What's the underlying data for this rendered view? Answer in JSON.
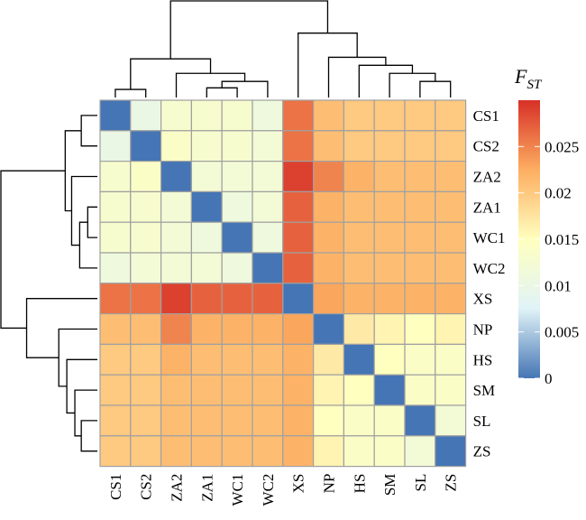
{
  "chart_data": {
    "type": "heatmap",
    "legend_title_main": "F",
    "legend_title_sub": "ST",
    "legend_ticks": [
      "0.025",
      "0.02",
      "0.015",
      "0.01",
      "0.005",
      "0"
    ],
    "legend_tick_values": [
      0.025,
      0.02,
      0.015,
      0.01,
      0.005,
      0
    ],
    "value_range": [
      0,
      0.03
    ],
    "colors": [
      "#4575b4",
      "#e0f3f8",
      "#ffffbf",
      "#fdae61",
      "#d73027"
    ],
    "row_labels": [
      "CS1",
      "CS2",
      "ZA2",
      "ZA1",
      "WC1",
      "WC2",
      "XS",
      "NP",
      "HS",
      "SM",
      "SL",
      "ZS"
    ],
    "col_labels": [
      "CS1",
      "CS2",
      "ZA2",
      "ZA1",
      "WC1",
      "WC2",
      "XS",
      "NP",
      "HS",
      "SM",
      "SL",
      "ZS"
    ],
    "values": [
      [
        0,
        0.01,
        0.013,
        0.013,
        0.013,
        0.011,
        0.026,
        0.021,
        0.02,
        0.02,
        0.02,
        0.02
      ],
      [
        0.01,
        0,
        0.014,
        0.013,
        0.013,
        0.012,
        0.026,
        0.021,
        0.02,
        0.02,
        0.02,
        0.02
      ],
      [
        0.013,
        0.014,
        0,
        0.012,
        0.012,
        0.012,
        0.029,
        0.025,
        0.022,
        0.021,
        0.021,
        0.021
      ],
      [
        0.013,
        0.013,
        0.012,
        0,
        0.011,
        0.012,
        0.027,
        0.022,
        0.021,
        0.021,
        0.021,
        0.021
      ],
      [
        0.013,
        0.013,
        0.012,
        0.011,
        0,
        0.011,
        0.027,
        0.022,
        0.021,
        0.021,
        0.021,
        0.021
      ],
      [
        0.011,
        0.012,
        0.012,
        0.012,
        0.011,
        0,
        0.027,
        0.022,
        0.021,
        0.021,
        0.021,
        0.021
      ],
      [
        0.026,
        0.026,
        0.029,
        0.027,
        0.027,
        0.027,
        0,
        0.023,
        0.022,
        0.022,
        0.022,
        0.022
      ],
      [
        0.021,
        0.021,
        0.025,
        0.022,
        0.022,
        0.022,
        0.023,
        0,
        0.017,
        0.016,
        0.015,
        0.016
      ],
      [
        0.02,
        0.02,
        0.022,
        0.021,
        0.021,
        0.021,
        0.022,
        0.017,
        0,
        0.015,
        0.014,
        0.014
      ],
      [
        0.02,
        0.02,
        0.021,
        0.021,
        0.021,
        0.021,
        0.022,
        0.016,
        0.015,
        0,
        0.014,
        0.014
      ],
      [
        0.02,
        0.02,
        0.021,
        0.021,
        0.021,
        0.021,
        0.022,
        0.015,
        0.014,
        0.014,
        0,
        0.012
      ],
      [
        0.02,
        0.02,
        0.021,
        0.021,
        0.021,
        0.021,
        0.022,
        0.016,
        0.014,
        0.014,
        0.012,
        0
      ]
    ],
    "col_dendrogram": [
      {
        "a": "CS1",
        "b": "CS2",
        "height": 0.5
      },
      {
        "a": "ZA1",
        "b": "WC1",
        "height": 0.6
      },
      {
        "a": "m1",
        "b": "WC2",
        "height": 1.0
      },
      {
        "a": "ZA2",
        "b": "m2",
        "height": 1.5
      },
      {
        "a": "m0",
        "b": "m3",
        "height": 2.4
      },
      {
        "a": "SL",
        "b": "ZS",
        "height": 1.0
      },
      {
        "a": "SM",
        "b": "m5",
        "height": 1.5
      },
      {
        "a": "HS",
        "b": "m6",
        "height": 2.0
      },
      {
        "a": "NP",
        "b": "m7",
        "height": 2.5
      },
      {
        "a": "XS",
        "b": "m8",
        "height": 4.0
      },
      {
        "a": "m4",
        "b": "m9",
        "height": 6.0
      }
    ],
    "row_dendrogram": [
      {
        "a": "CS1",
        "b": "CS2",
        "height": 1.0
      },
      {
        "a": "ZA1",
        "b": "WC1",
        "height": 0.6
      },
      {
        "a": "m1",
        "b": "WC2",
        "height": 1.1
      },
      {
        "a": "ZA2",
        "b": "m2",
        "height": 1.6
      },
      {
        "a": "m0",
        "b": "m3",
        "height": 2.0
      },
      {
        "a": "SL",
        "b": "ZS",
        "height": 1.0
      },
      {
        "a": "SM",
        "b": "m5",
        "height": 1.4
      },
      {
        "a": "HS",
        "b": "m6",
        "height": 1.9
      },
      {
        "a": "NP",
        "b": "m7",
        "height": 2.4
      },
      {
        "a": "XS",
        "b": "m8",
        "height": 4.4
      },
      {
        "a": "m4",
        "b": "m9",
        "height": 6.0
      }
    ]
  }
}
